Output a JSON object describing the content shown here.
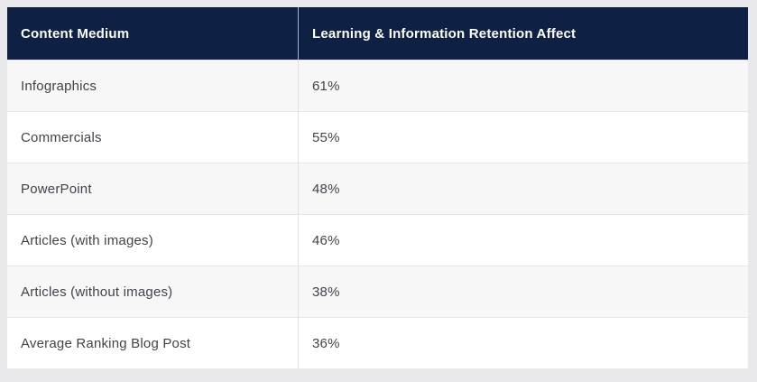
{
  "colors": {
    "header_bg": "#0e2144",
    "header_text": "#ffffff",
    "page_bg": "#e9e9eb",
    "row_bg": "#ffffff",
    "row_alt_bg": "#f7f7f8",
    "divider": "#e2e2e5",
    "body_text": "#404349"
  },
  "table": {
    "columns": [
      "Content Medium",
      "Learning & Information Retention Affect"
    ],
    "rows": [
      [
        "Infographics",
        "61%"
      ],
      [
        "Commercials",
        "55%"
      ],
      [
        "PowerPoint",
        "48%"
      ],
      [
        "Articles (with images)",
        "46%"
      ],
      [
        "Articles (without images)",
        "38%"
      ],
      [
        "Average Ranking Blog Post",
        "36%"
      ]
    ]
  },
  "chart_data": {
    "type": "table",
    "columns": [
      "Content Medium",
      "Learning & Information Retention Affect"
    ],
    "categories": [
      "Infographics",
      "Commercials",
      "PowerPoint",
      "Articles (with images)",
      "Articles (without images)",
      "Average Ranking Blog Post"
    ],
    "values": [
      61,
      55,
      48,
      46,
      38,
      36
    ],
    "value_unit": "%",
    "title": ""
  }
}
